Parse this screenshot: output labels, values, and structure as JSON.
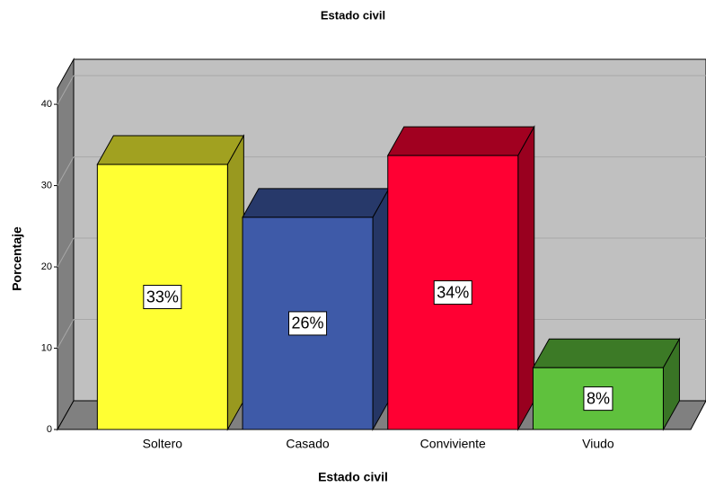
{
  "chart_data": {
    "type": "bar3d",
    "title": "Estado civil",
    "x_label": "Estado civil",
    "y_label": "Porcentaje",
    "categories": [
      "Soltero",
      "Casado",
      "Conviviente",
      "Viudo"
    ],
    "values": [
      32.6,
      26.1,
      33.7,
      7.6
    ],
    "value_labels": [
      "33%",
      "26%",
      "34%",
      "8%"
    ],
    "colors": [
      "#ffff33",
      "#3e5aa8",
      "#ff0033",
      "#5fc13d"
    ],
    "ylim": [
      0,
      42
    ],
    "yticks": [
      0,
      10,
      20,
      30,
      40
    ],
    "grid": true
  }
}
